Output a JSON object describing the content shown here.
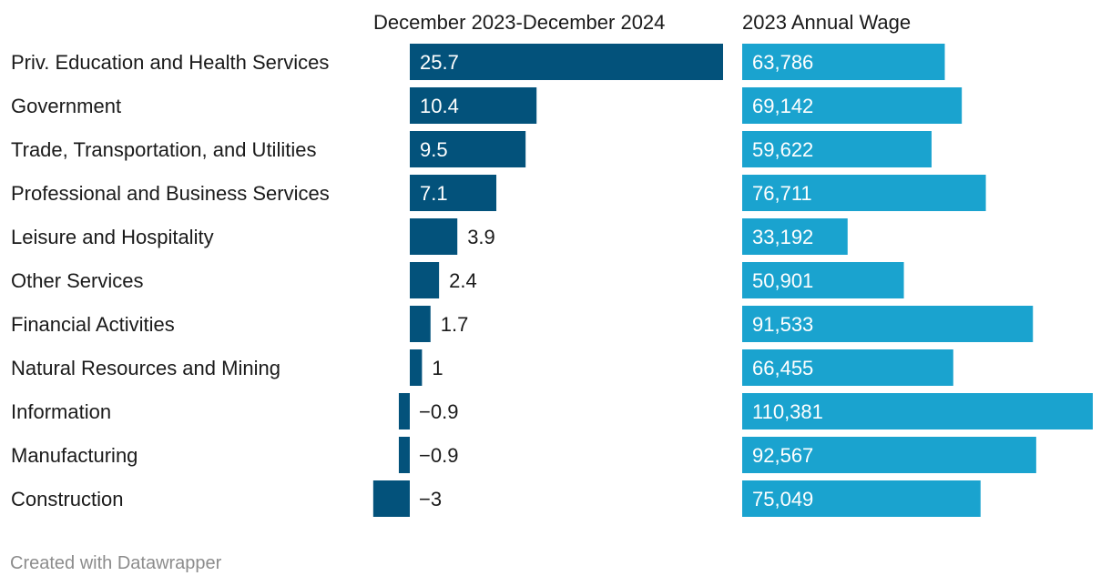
{
  "chart_data": {
    "type": "bar",
    "orientation": "horizontal",
    "categories": [
      "Priv. Education and Health Services",
      "Government",
      "Trade, Transportation, and Utilities",
      "Professional and Business Services",
      "Leisure and Hospitality",
      "Other Services",
      "Financial Activities",
      "Natural Resources and Mining",
      "Information",
      "Manufacturing",
      "Construction"
    ],
    "series": [
      {
        "name": "December 2023-December 2024",
        "color": "#03527b",
        "values": [
          25.7,
          10.4,
          9.5,
          7.1,
          3.9,
          2.4,
          1.7,
          1,
          -0.9,
          -0.9,
          -3
        ],
        "labels": [
          "25.7",
          "10.4",
          "9.5",
          "7.1",
          "3.9",
          "2.4",
          "1.7",
          "1",
          "−0.9",
          "−0.9",
          "−3"
        ]
      },
      {
        "name": "2023 Annual Wage",
        "color": "#1aa3cf",
        "values": [
          63786,
          69142,
          59622,
          76711,
          33192,
          50901,
          91533,
          66455,
          110381,
          92567,
          75049
        ],
        "labels": [
          "63,786",
          "69,142",
          "59,622",
          "76,711",
          "33,192",
          "50,901",
          "91,533",
          "66,455",
          "110,381",
          "92,567",
          "75,049"
        ]
      }
    ]
  },
  "footer": {
    "credit": "Created with Datawrapper"
  }
}
